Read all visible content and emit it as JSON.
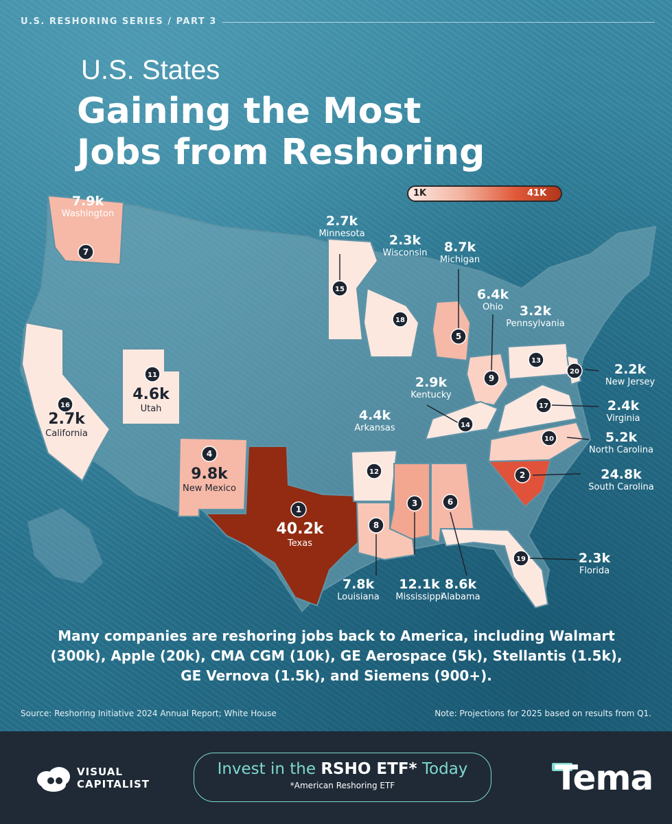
{
  "header": {
    "series": "U.S. RESHORING SERIES / PART 3",
    "title_top": "U.S. States",
    "title_main_line1": "Gaining the Most",
    "title_main_line2": "Jobs from Reshoring"
  },
  "legend": {
    "min_label": "1K",
    "max_label": "41K",
    "colors": [
      "#fde9e2",
      "#e05a3a",
      "#b2361c"
    ]
  },
  "states": [
    {
      "rank": "1",
      "name": "Texas",
      "jobs": "40.2k"
    },
    {
      "rank": "2",
      "name": "South Carolina",
      "jobs": "24.8k"
    },
    {
      "rank": "3",
      "name": "Mississippi",
      "jobs": "12.1k"
    },
    {
      "rank": "4",
      "name": "New Mexico",
      "jobs": "9.8k"
    },
    {
      "rank": "5",
      "name": "Michigan",
      "jobs": "8.7k"
    },
    {
      "rank": "6",
      "name": "Alabama",
      "jobs": "8.6k"
    },
    {
      "rank": "7",
      "name": "Washington",
      "jobs": "7.9k"
    },
    {
      "rank": "8",
      "name": "Louisiana",
      "jobs": "7.8k"
    },
    {
      "rank": "9",
      "name": "Ohio",
      "jobs": "6.4k"
    },
    {
      "rank": "10",
      "name": "North Carolina",
      "jobs": "5.2k"
    },
    {
      "rank": "11",
      "name": "Utah",
      "jobs": "4.6k"
    },
    {
      "rank": "12",
      "name": "Arkansas",
      "jobs": "4.4k"
    },
    {
      "rank": "13",
      "name": "Pennsylvania",
      "jobs": "3.2k"
    },
    {
      "rank": "14",
      "name": "Kentucky",
      "jobs": "2.9k"
    },
    {
      "rank": "15",
      "name": "Minnesota",
      "jobs": "2.7k"
    },
    {
      "rank": "16",
      "name": "California",
      "jobs": "2.7k"
    },
    {
      "rank": "17",
      "name": "Virginia",
      "jobs": "2.4k"
    },
    {
      "rank": "18",
      "name": "Wisconsin",
      "jobs": "2.3k"
    },
    {
      "rank": "19",
      "name": "Florida",
      "jobs": "2.3k"
    },
    {
      "rank": "20",
      "name": "New Jersey",
      "jobs": "2.2k"
    }
  ],
  "body_text": "Many companies are reshoring jobs back to America, including Walmart (300k), Apple (20k), CMA CGM (10k), GE Aerospace (5k), Stellantis (1.5k), GE Vernova (1.5k), and Siemens (900+).",
  "source": "Source: Reshoring Initiative 2024 Annual Report; White House",
  "note": "Note: Projections for 2025 based on results from Q1.",
  "footer": {
    "brand_line1": "VISUAL",
    "brand_line2": "CAPITALIST",
    "cta_prefix": "Invest in the ",
    "cta_highlight": "RSHO ETF*",
    "cta_suffix": " Today",
    "cta_sub": "*American Reshoring ETF",
    "sponsor": "Tema"
  }
}
